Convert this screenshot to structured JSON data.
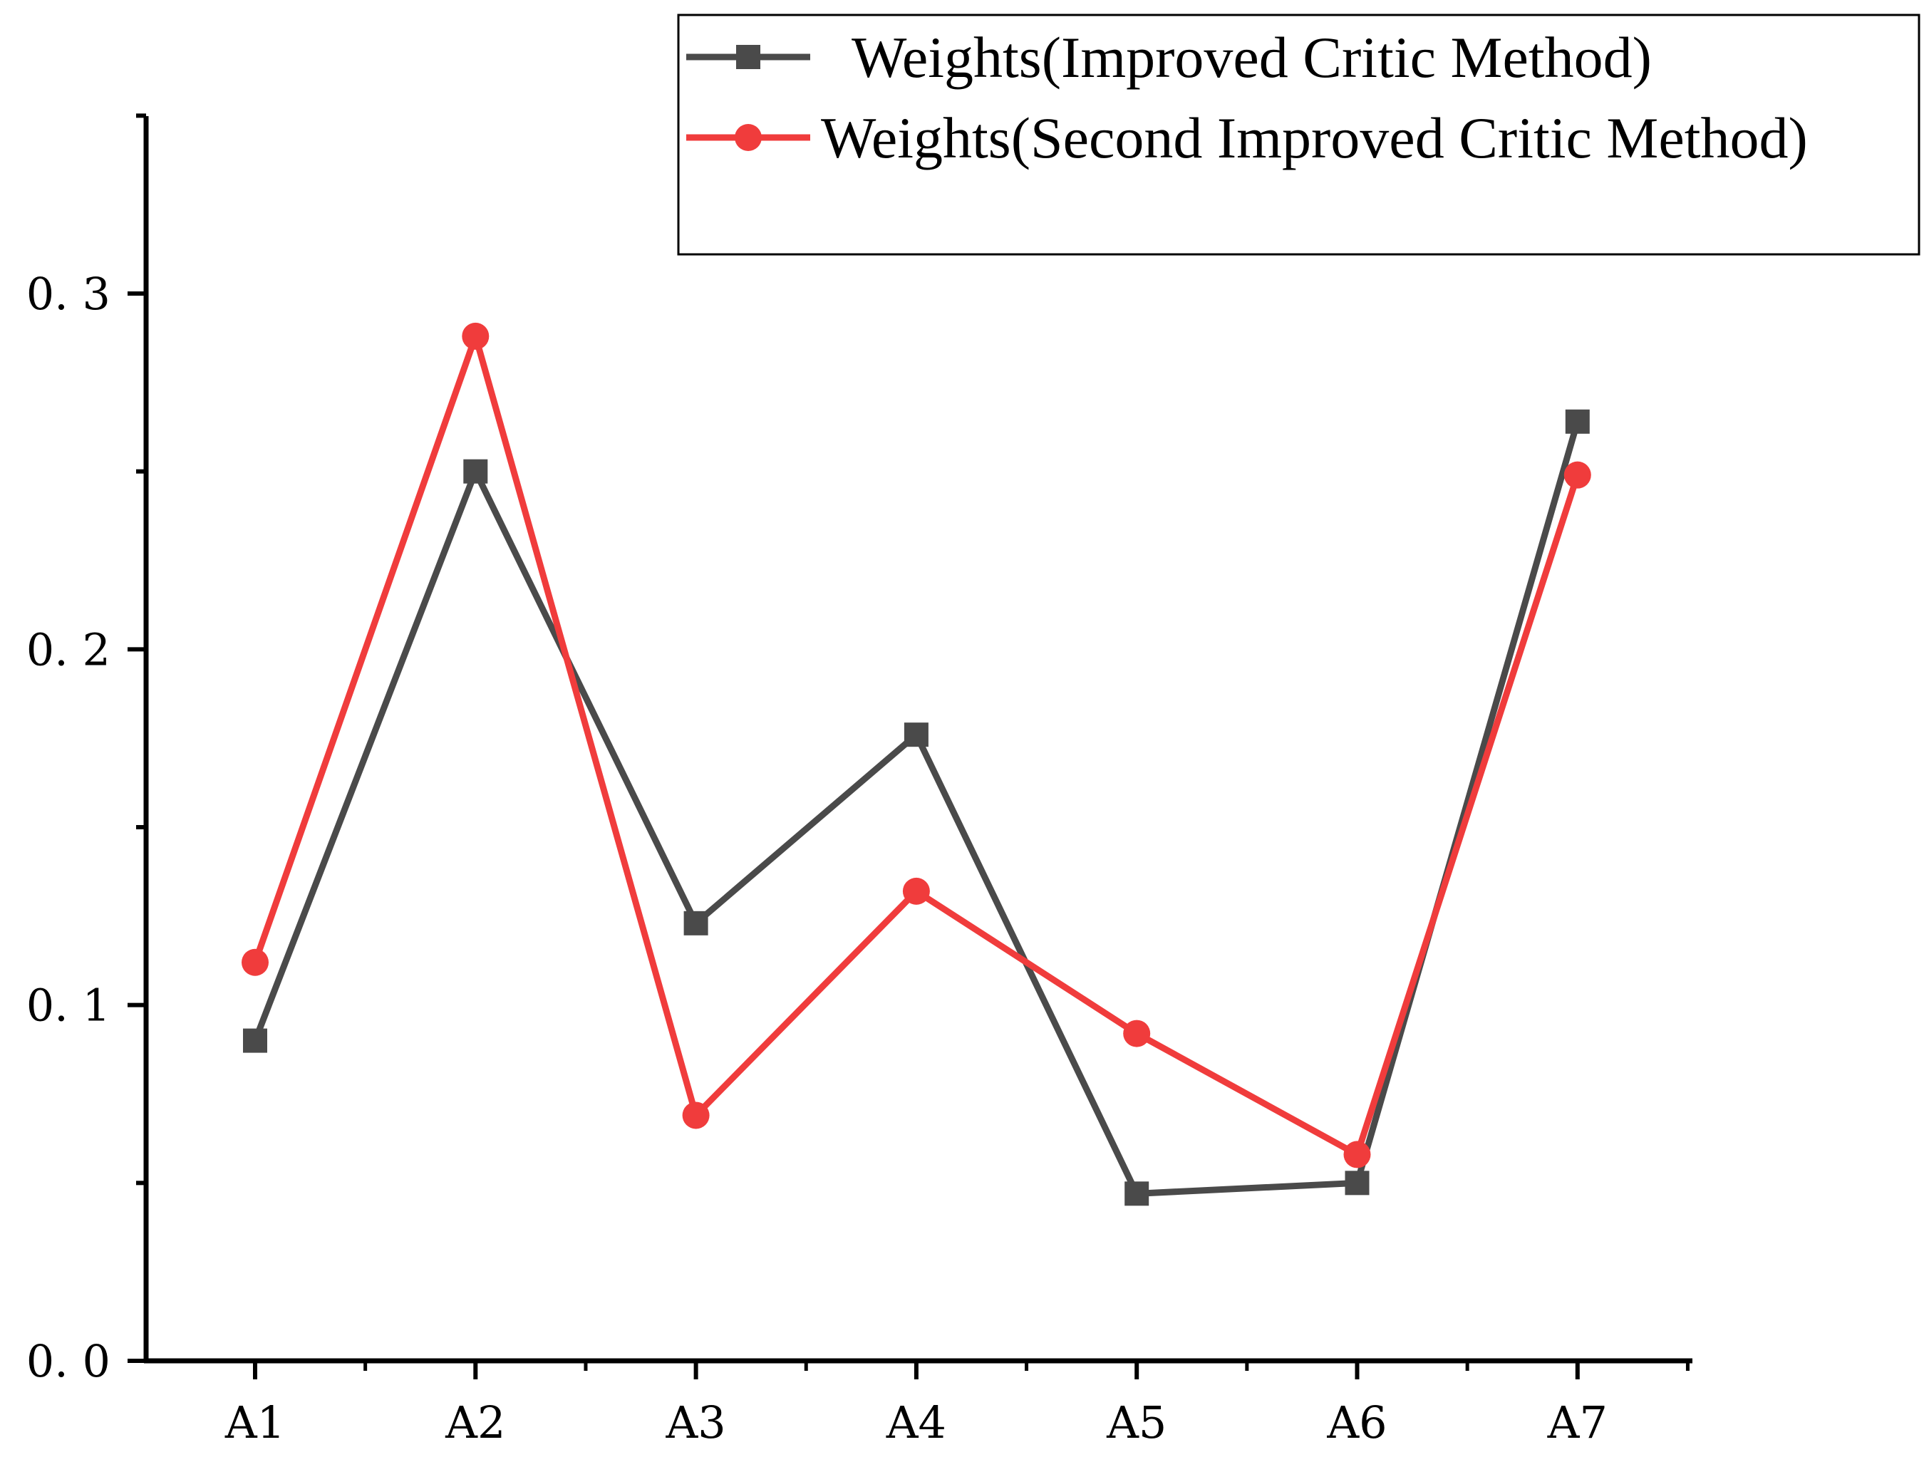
{
  "chart_data": {
    "type": "line",
    "title": "",
    "xlabel": "",
    "ylabel": "",
    "categories": [
      "A1",
      "A2",
      "A3",
      "A4",
      "A5",
      "A6",
      "A7"
    ],
    "ylim": [
      0.0,
      0.35
    ],
    "yticks": [
      0.0,
      0.1,
      0.2,
      0.3
    ],
    "ytick_labels": [
      "0. 0",
      "0. 1",
      "0. 2",
      "0. 3"
    ],
    "grid": false,
    "legend_position": "top-right",
    "series": [
      {
        "name": "Weights(Improved Critic Method)",
        "color": "#4a4a4a",
        "marker": "square",
        "values": [
          0.09,
          0.25,
          0.123,
          0.176,
          0.047,
          0.05,
          0.264
        ]
      },
      {
        "name": "Weights(Second Improved Critic Method)",
        "color": "#f03c3c",
        "marker": "circle",
        "values": [
          0.112,
          0.288,
          0.069,
          0.132,
          0.092,
          0.058,
          0.249
        ]
      }
    ]
  }
}
